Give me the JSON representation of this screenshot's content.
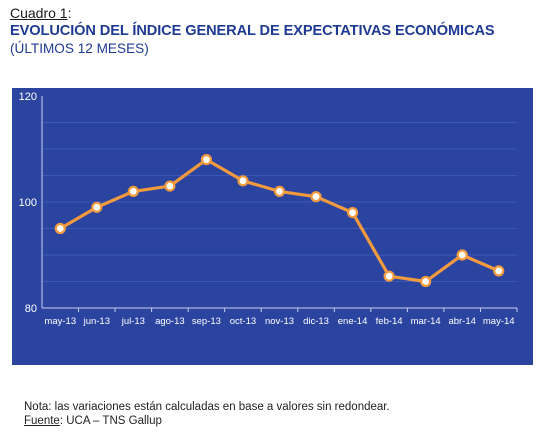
{
  "header": {
    "cuadro_label": "Cuadro 1",
    "cuadro_colon": ":",
    "title": "EVOLUCIÓN DEL ÍNDICE GENERAL DE EXPECTATIVAS ECONÓMICAS",
    "subtitle": "(ÚLTIMOS 12 MESES)"
  },
  "footer": {
    "note": "Nota: las variaciones están calculadas en base a valores sin redondear.",
    "source_label": "Fuente",
    "source_text": ": UCA – TNS Gallup"
  },
  "colors": {
    "panel_bg": "#2b44a0",
    "gridline": "#3e58b8",
    "line": "#f39a3e",
    "marker_fill": "#ffffff",
    "text": "#ffffff"
  },
  "chart_data": {
    "type": "line",
    "categories": [
      "may-13",
      "jun-13",
      "jul-13",
      "ago-13",
      "sep-13",
      "oct-13",
      "nov-13",
      "dic-13",
      "ene-14",
      "feb-14",
      "mar-14",
      "abr-14",
      "may-14"
    ],
    "series": [
      {
        "values": [
          95,
          99,
          102,
          103,
          108,
          104,
          102,
          101,
          98,
          86,
          85,
          90,
          87
        ]
      }
    ],
    "ylim": [
      80,
      120
    ],
    "yticks": [
      80,
      100,
      120
    ],
    "grid": true
  }
}
